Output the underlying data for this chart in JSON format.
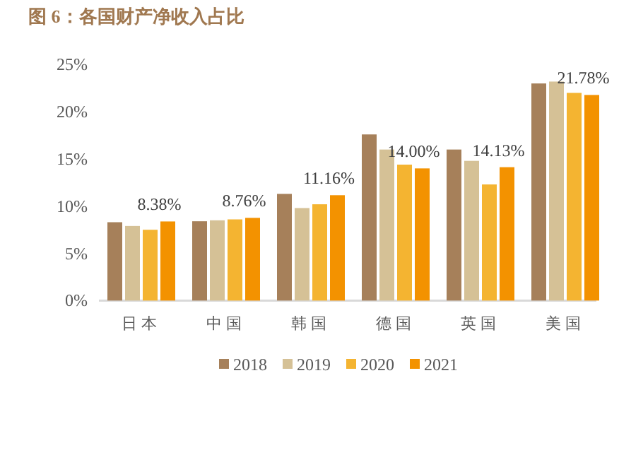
{
  "chart_data": {
    "type": "bar",
    "title": "图 6：各国财产净收入占比",
    "categories": [
      "日本",
      "中国",
      "韩国",
      "德国",
      "英国",
      "美国"
    ],
    "series": [
      {
        "name": "2018",
        "color": "#a6805a",
        "values": [
          8.3,
          8.4,
          11.3,
          17.6,
          16.0,
          23.0
        ]
      },
      {
        "name": "2019",
        "color": "#d5c196",
        "values": [
          7.9,
          8.5,
          9.8,
          16.0,
          14.8,
          23.2
        ]
      },
      {
        "name": "2020",
        "color": "#f4b431",
        "values": [
          7.5,
          8.6,
          10.2,
          14.4,
          12.3,
          22.0
        ]
      },
      {
        "name": "2021",
        "color": "#f39200",
        "values": [
          8.38,
          8.76,
          11.16,
          14.0,
          14.13,
          21.78
        ],
        "value_labels": [
          "8.38%",
          "8.76%",
          "11.16%",
          "14.00%",
          "14.13%",
          "21.78%"
        ]
      }
    ],
    "ylim": [
      0,
      25
    ],
    "yticks": [
      {
        "value": 0,
        "label": "0%"
      },
      {
        "value": 5,
        "label": "5%"
      },
      {
        "value": 10,
        "label": "10%"
      },
      {
        "value": 15,
        "label": "15%"
      },
      {
        "value": 20,
        "label": "20%"
      },
      {
        "value": 25,
        "label": "25%"
      }
    ],
    "grid": false,
    "legend": "bottom"
  }
}
